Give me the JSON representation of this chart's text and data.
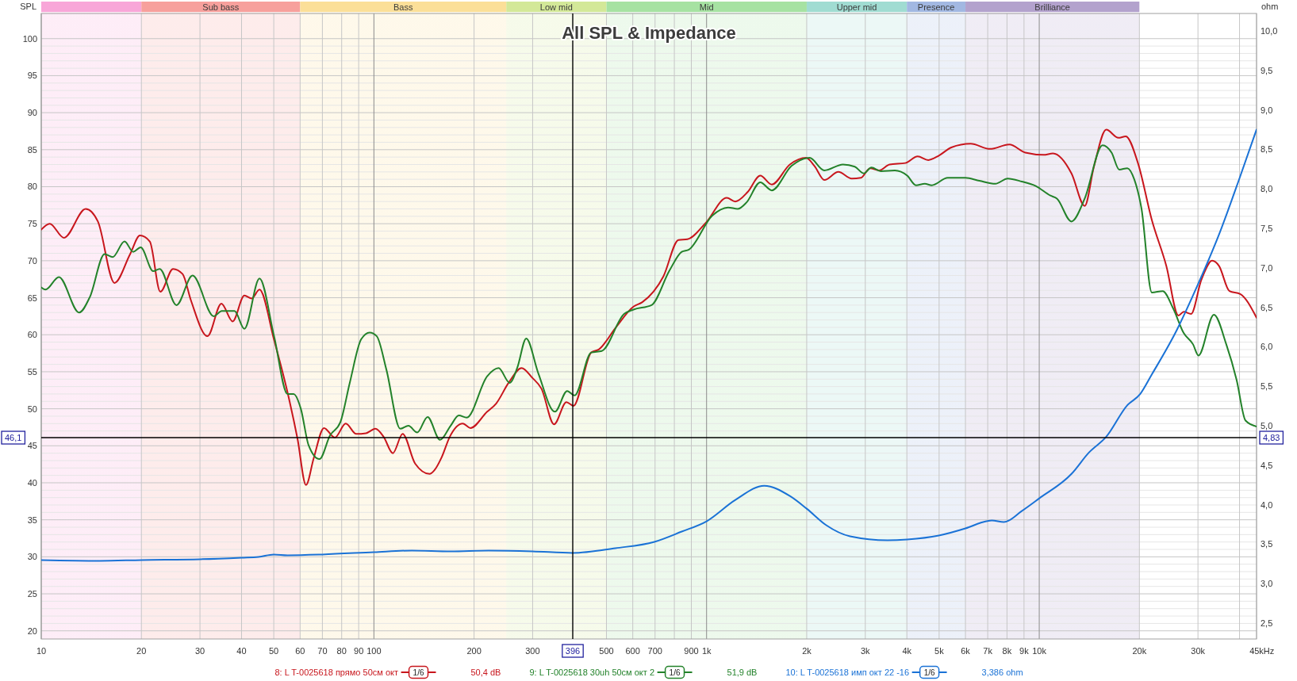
{
  "chart_data": {
    "type": "line",
    "title": "All SPL & Impedance",
    "xlabel": "Hz",
    "ylabel": "SPL",
    "y2label": "ohm",
    "log": "x",
    "grid": true,
    "legend": "bottom",
    "xlim": [
      10,
      45000
    ],
    "xticks": [
      10,
      20,
      30,
      40,
      50,
      60,
      70,
      80,
      90,
      100,
      200,
      300,
      500,
      600,
      700,
      {
        "value": 800,
        "label": null
      },
      900,
      {
        "value": 1000,
        "label": "1k"
      },
      {
        "value": 2000,
        "label": "2k"
      },
      {
        "value": 3000,
        "label": "3k"
      },
      {
        "value": 4000,
        "label": "4k"
      },
      {
        "value": 5000,
        "label": "5k"
      },
      {
        "value": 6000,
        "label": "6k"
      },
      {
        "value": 7000,
        "label": "7k"
      },
      {
        "value": 8000,
        "label": "8k"
      },
      {
        "value": 9000,
        "label": "9k"
      },
      {
        "value": 10000,
        "label": "10k"
      },
      {
        "value": 20000,
        "label": "20k"
      },
      {
        "value": 30000,
        "label": "30k"
      },
      {
        "value": 40000,
        "label": null
      },
      {
        "value": 45000,
        "label": "45k"
      }
    ],
    "ylim": [
      18.9,
      103.4
    ],
    "yticks": [
      20,
      {
        "value": 21,
        "label": null
      },
      {
        "value": 22,
        "label": null
      },
      {
        "value": 23,
        "label": null
      },
      {
        "value": 24,
        "label": null
      },
      25,
      {
        "value": 26,
        "label": null
      },
      {
        "value": 27,
        "label": null
      },
      {
        "value": 28,
        "label": null
      },
      {
        "value": 29,
        "label": null
      },
      30,
      {
        "value": 31,
        "label": null
      },
      {
        "value": 32,
        "label": null
      },
      {
        "value": 33,
        "label": null
      },
      {
        "value": 34,
        "label": null
      },
      35,
      {
        "value": 36,
        "label": null
      },
      {
        "value": 37,
        "label": null
      },
      {
        "value": 38,
        "label": null
      },
      {
        "value": 39,
        "label": null
      },
      40,
      {
        "value": 41,
        "label": null
      },
      {
        "value": 42,
        "label": null
      },
      {
        "value": 43,
        "label": null
      },
      {
        "value": 44,
        "label": null
      },
      45,
      {
        "value": 47,
        "label": null
      },
      {
        "value": 48,
        "label": null
      },
      {
        "value": 49,
        "label": null
      },
      50,
      {
        "value": 51,
        "label": null
      },
      {
        "value": 52,
        "label": null
      },
      {
        "value": 53,
        "label": null
      },
      {
        "value": 54,
        "label": null
      },
      55,
      {
        "value": 56,
        "label": null
      },
      {
        "value": 57,
        "label": null
      },
      {
        "value": 58,
        "label": null
      },
      {
        "value": 59,
        "label": null
      },
      60,
      {
        "value": 61,
        "label": null
      },
      {
        "value": 62,
        "label": null
      },
      {
        "value": 63,
        "label": null
      },
      {
        "value": 64,
        "label": null
      },
      65,
      {
        "value": 66,
        "label": null
      },
      {
        "value": 67,
        "label": null
      },
      {
        "value": 68,
        "label": null
      },
      {
        "value": 69,
        "label": null
      },
      70,
      {
        "value": 71,
        "label": null
      },
      {
        "value": 72,
        "label": null
      },
      {
        "value": 73,
        "label": null
      },
      {
        "value": 74,
        "label": null
      },
      75,
      {
        "value": 76,
        "label": null
      },
      {
        "value": 77,
        "label": null
      },
      {
        "value": 78,
        "label": null
      },
      {
        "value": 79,
        "label": null
      },
      80,
      {
        "value": 81,
        "label": null
      },
      {
        "value": 82,
        "label": null
      },
      {
        "value": 83,
        "label": null
      },
      {
        "value": 84,
        "label": null
      },
      85,
      {
        "value": 86,
        "label": null
      },
      {
        "value": 87,
        "label": null
      },
      {
        "value": 88,
        "label": null
      },
      {
        "value": 89,
        "label": null
      },
      90,
      {
        "value": 91,
        "label": null
      },
      {
        "value": 92,
        "label": null
      },
      {
        "value": 93,
        "label": null
      },
      {
        "value": 94,
        "label": null
      },
      95,
      {
        "value": 96,
        "label": null
      },
      {
        "value": 97,
        "label": null
      },
      {
        "value": 98,
        "label": null
      },
      {
        "value": 99,
        "label": null
      },
      100
    ],
    "y2lim": [
      2.3,
      10.22
    ],
    "y2ticks": [
      {
        "value": 2.5,
        "label": "2,5"
      },
      {
        "value": 3,
        "label": "3,0"
      },
      {
        "value": 3.5,
        "label": "3,5"
      },
      {
        "value": 4,
        "label": "4,0"
      },
      {
        "value": 4.5,
        "label": "4,5"
      },
      {
        "value": 5,
        "label": "5,0"
      },
      {
        "value": 5.5,
        "label": "5,5"
      },
      {
        "value": 6,
        "label": "6,0"
      },
      {
        "value": 6.5,
        "label": "6,5"
      },
      {
        "value": 7,
        "label": "7,0"
      },
      {
        "value": 7.5,
        "label": "7,5"
      },
      {
        "value": 8,
        "label": "8,0"
      },
      {
        "value": 8.5,
        "label": "8,5"
      },
      {
        "value": 9,
        "label": "9,0"
      },
      {
        "value": 9.5,
        "label": "9,5"
      },
      {
        "value": 10,
        "label": "10,0"
      }
    ],
    "series": [
      {
        "name": "8: L T-0025618 прямо 50см окт",
        "color": "#c8161d",
        "x": [
          10,
          10.6,
          11.7,
          13.6,
          14.8,
          16.6,
          18.5,
          19.8,
          21.2,
          22.8,
          24.9,
          26.6,
          28.2,
          31.6,
          34.8,
          37.6,
          40.8,
          42.9,
          45.3,
          50.1,
          55,
          58.9,
          62.5,
          65.9,
          70.8,
          76.3,
          82.3,
          88.5,
          94.7,
          101,
          107,
          114,
          122,
          133,
          147,
          152,
          160,
          169,
          185,
          195,
          219,
          233,
          254,
          278,
          299,
          319,
          348,
          379,
          398,
          450,
          474,
          532,
          603,
          641,
          742,
          823,
          876,
          994,
          1150,
          1220,
          1330,
          1450,
          1570,
          1780,
          1990,
          2110,
          2260,
          2490,
          2730,
          2910,
          3100,
          3300,
          3550,
          3960,
          4310,
          4640,
          4990,
          5440,
          6220,
          7110,
          8130,
          9080,
          10300,
          11000,
          12500,
          13700,
          14600,
          15900,
          17300,
          18200,
          19800,
          21800,
          24100,
          26200,
          27200,
          28600,
          30700,
          33100,
          34700,
          37300,
          40200,
          45000
        ],
        "values": [
          74.2,
          75.0,
          73.1,
          77.0,
          75.3,
          67.0,
          70.9,
          73.4,
          72.6,
          65.8,
          68.9,
          68.2,
          64.6,
          59.8,
          64.2,
          61.8,
          65.3,
          64.9,
          66.1,
          59.3,
          52.2,
          46.0,
          39.7,
          43.3,
          47.4,
          46.1,
          48.0,
          46.6,
          46.7,
          47.3,
          46.2,
          44.0,
          46.6,
          42.6,
          41.2,
          41.7,
          43.5,
          46.2,
          48.0,
          47.4,
          49.6,
          50.7,
          53.5,
          55.5,
          54.2,
          52.7,
          47.9,
          50.9,
          50.4,
          57.6,
          58.0,
          60.9,
          63.8,
          64.4,
          67.9,
          72.8,
          72.9,
          75.1,
          78.5,
          78.0,
          79.3,
          81.5,
          80.3,
          83.0,
          83.9,
          82.8,
          80.9,
          82.0,
          81.1,
          81.2,
          82.5,
          82.2,
          83.0,
          83.2,
          84.1,
          83.6,
          84.2,
          85.3,
          85.8,
          85.1,
          85.7,
          84.6,
          84.3,
          84.5,
          81.8,
          77.4,
          82.7,
          87.7,
          86.6,
          86.8,
          83.2,
          75.5,
          69.3,
          62.6,
          63.1,
          62.8,
          67.4,
          70.0,
          69.3,
          65.9,
          65.5,
          62.3
        ]
      },
      {
        "name": "9: L T-0025618 30uh 50см окт 2",
        "color": "#23822a",
        "x": [
          10,
          10.3,
          11.3,
          13,
          14,
          15.5,
          16.4,
          17.8,
          18.9,
          19.9,
          21.7,
          22.7,
          25.5,
          28.5,
          33,
          34.9,
          38.1,
          40.8,
          45.3,
          50.1,
          55,
          57.4,
          60.3,
          63.6,
          68.6,
          73.8,
          79.3,
          84.6,
          91.6,
          97.1,
          102,
          109,
          120,
          127,
          135,
          145,
          158,
          170,
          180,
          190,
          219,
          237,
          256,
          270,
          287,
          312,
          350,
          381,
          401,
          450,
          484,
          565,
          603,
          683,
          774,
          842,
          885,
          1040,
          1160,
          1240,
          1320,
          1450,
          1570,
          1800,
          2040,
          2260,
          2570,
          2790,
          2970,
          3130,
          3340,
          3680,
          4010,
          4260,
          4530,
          4750,
          5310,
          6000,
          6610,
          7380,
          8040,
          8860,
          9760,
          10800,
          11300,
          12500,
          13700,
          15500,
          16500,
          17400,
          18400,
          19300,
          20300,
          21800,
          23500,
          25300,
          27200,
          29000,
          30100,
          33500,
          36500,
          39200,
          41700,
          45000
        ],
        "values": [
          66.4,
          66.1,
          67.8,
          63.0,
          65.1,
          70.9,
          70.5,
          72.6,
          71.2,
          71.8,
          68.6,
          68.9,
          64.0,
          68.0,
          62.5,
          63.2,
          63.2,
          60.8,
          67.6,
          59.8,
          52.0,
          52.0,
          50.0,
          45.1,
          43.2,
          46.4,
          48.2,
          53.5,
          59.4,
          60.3,
          59.8,
          55.3,
          47.3,
          47.7,
          46.8,
          48.9,
          45.8,
          47.7,
          49.1,
          48.8,
          54.4,
          55.5,
          53.5,
          55.6,
          59.5,
          54.8,
          49.6,
          52.4,
          51.8,
          57.6,
          57.8,
          62.8,
          63.4,
          64.0,
          68.7,
          71.2,
          71.5,
          76.1,
          77.2,
          77.0,
          77.9,
          80.6,
          79.5,
          82.8,
          83.9,
          82.2,
          83.0,
          82.7,
          81.8,
          82.6,
          82.1,
          82.2,
          81.5,
          80.2,
          80.4,
          80.2,
          81.2,
          81.2,
          80.8,
          80.4,
          81.1,
          80.7,
          80.1,
          78.8,
          78.4,
          75.3,
          78.4,
          85.6,
          84.6,
          82.3,
          82.5,
          81.0,
          77.0,
          65.7,
          65.9,
          63.5,
          60.2,
          58.7,
          57.2,
          62.7,
          58.7,
          53.9,
          48.4,
          47.6
        ]
      },
      {
        "name": "10: L T-0025618 имп окт 22 -16",
        "color": "#1a72d6",
        "axis": "y2",
        "x": [
          10,
          15,
          20,
          30,
          40,
          45,
          50,
          55,
          70,
          100,
          130,
          170,
          221,
          300,
          396,
          532,
          697,
          842,
          1000,
          1220,
          1490,
          1780,
          2000,
          2290,
          2700,
          3500,
          4010,
          4990,
          6000,
          6930,
          7200,
          7830,
          8860,
          10000,
          12500,
          14100,
          15900,
          18400,
          20100,
          21800,
          25900,
          30000,
          34700,
          40200,
          45000
        ],
        "values": [
          3.3,
          3.29,
          3.3,
          3.31,
          3.33,
          3.34,
          3.37,
          3.36,
          3.37,
          3.4,
          3.42,
          3.41,
          3.42,
          3.41,
          3.39,
          3.45,
          3.53,
          3.66,
          3.79,
          4.06,
          4.24,
          4.11,
          3.95,
          3.74,
          3.6,
          3.55,
          3.56,
          3.61,
          3.7,
          3.79,
          3.8,
          3.78,
          3.92,
          4.08,
          4.39,
          4.66,
          4.86,
          5.26,
          5.4,
          5.65,
          6.21,
          6.79,
          7.42,
          8.16,
          8.75
        ]
      }
    ],
    "bands": [
      {
        "axis": "x",
        "from": 10,
        "to": 20,
        "label": null,
        "color": "#f8a6d8"
      },
      {
        "axis": "x",
        "from": 20,
        "to": 60,
        "label": "Sub bass",
        "color": "#f7a09c"
      },
      {
        "axis": "x",
        "from": 60,
        "to": 250,
        "label": "Bass",
        "color": "#fbdf98"
      },
      {
        "axis": "x",
        "from": 250,
        "to": 500,
        "label": "Low mid",
        "color": "#d3e898"
      },
      {
        "axis": "x",
        "from": 500,
        "to": 2000,
        "label": "Mid",
        "color": "#a6e2a2"
      },
      {
        "axis": "x",
        "from": 2000,
        "to": 4000,
        "label": "Upper mid",
        "color": "#a0dcd2"
      },
      {
        "axis": "x",
        "from": 4000,
        "to": 6000,
        "label": "Presence",
        "color": "#a2b8e2"
      },
      {
        "axis": "x",
        "from": 6000,
        "to": 20000,
        "label": "Brilliance",
        "color": "#b3a2cd"
      }
    ],
    "ref_lines": [
      {
        "axis": "x",
        "value": 396,
        "label": "396",
        "color": "#000000"
      },
      {
        "axis": "y",
        "value": 46.1,
        "label": "46,1",
        "color": "#000000"
      }
    ],
    "annotations": [
      "1/6",
      "50,4 dB",
      "1/6",
      "51,9 dB",
      "1/6",
      "3,386 ohm",
      {
        "text": "4,83",
        "x": 45000,
        "y": 46.1
      }
    ]
  }
}
